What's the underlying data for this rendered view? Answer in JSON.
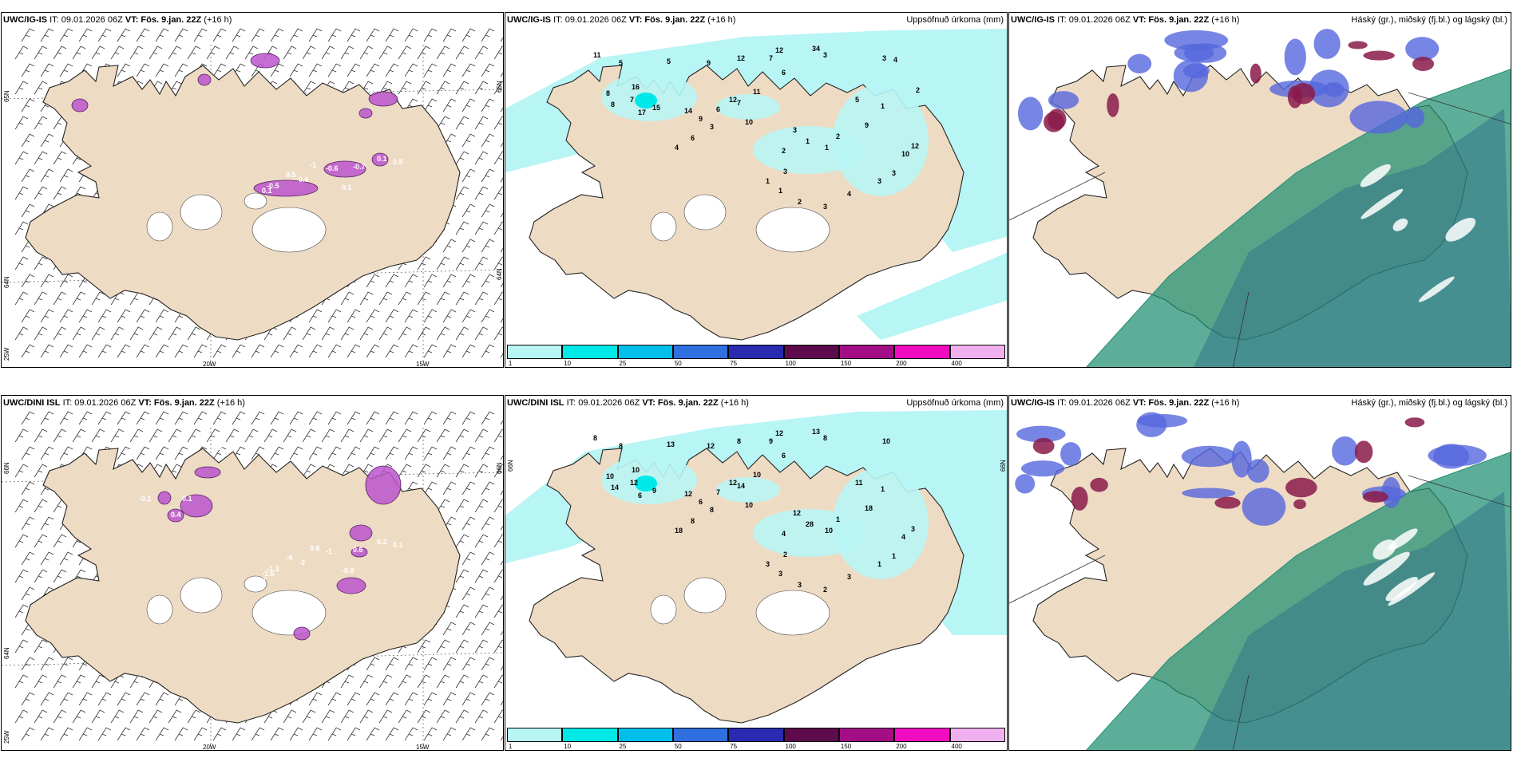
{
  "colors": {
    "land": "#eedbc4",
    "coast": "#222222",
    "snow": "#ffffff",
    "precip_light": "#b8f5f5",
    "precip_mid": "#00e8e8",
    "cloud_high": "#e8475f",
    "cloud_mid": "#5566dd",
    "cloud_low": "#1f8f72",
    "instab": "#bb55cc"
  },
  "top_row": {
    "wind": {
      "model": "UWC/IG-IS",
      "it": "IT: 09.01.2026 06Z",
      "vt": "VT: Fös. 9.jan. 22Z",
      "lead": "(+16 h)",
      "axis": [
        "65N",
        "64N",
        "25W",
        "20W",
        "15W",
        "65N",
        "64N"
      ],
      "values": [
        "0",
        "0.1",
        "-0.5",
        "0.5",
        "0.6",
        "-1",
        "-0.6",
        "0.1",
        "-0.7",
        "0.1",
        "0.5"
      ]
    },
    "precip": {
      "model": "UWC/IG-IS",
      "it": "IT: 09.01.2026 06Z",
      "vt": "VT: Fös. 9.jan. 22Z",
      "lead": "(+16 h)",
      "product": "Uppsöfnuð úrkoma (mm)",
      "values": [
        "12",
        "34",
        "11",
        "5",
        "5",
        "9",
        "12",
        "7",
        "6",
        "3",
        "3",
        "16",
        "8",
        "8",
        "7",
        "17",
        "15",
        "14",
        "12",
        "6",
        "9",
        "7",
        "11",
        "10",
        "3",
        "6",
        "4",
        "3",
        "1",
        "1",
        "2",
        "5",
        "9",
        "2",
        "3",
        "1",
        "1",
        "2",
        "3",
        "4",
        "3",
        "3",
        "10",
        "12",
        "1",
        "2",
        "4"
      ]
    },
    "cloud": {
      "model": "UWC/IG-IS",
      "it": "IT: 09.01.2026 06Z",
      "vt": "VT: Fös. 9.jan. 22Z",
      "lead": "(+16 h)",
      "product": "Háský (gr.), miðský (fj.bl.) og lágský (bl.)"
    }
  },
  "bottom_row": {
    "wind": {
      "model": "UWC/DINI ISL",
      "it": "IT: 09.01.2026 06Z",
      "vt": "VT: Fös. 9.jan. 22Z",
      "lead": "(+16 h)",
      "axis": [
        "66N",
        "64N",
        "25W",
        "20W",
        "15W",
        "66N"
      ],
      "values": [
        "-1.7",
        "-1.6",
        "-1.3",
        "-4",
        "-3",
        "0.6",
        "-1",
        "-0.8",
        "0.6",
        "0.2",
        "0.1",
        "-0.1",
        "0.4",
        "0.1",
        "0.2"
      ]
    },
    "precip": {
      "model": "UWC/DINI ISL",
      "it": "IT: 09.01.2026 06Z",
      "vt": "VT: Fös. 9.jan. 22Z",
      "lead": "(+16 h)",
      "product": "Uppsöfnuð úrkoma (mm)",
      "axis": [
        "66N",
        "66N"
      ],
      "values": [
        "12",
        "13",
        "8",
        "8",
        "13",
        "12",
        "8",
        "9",
        "6",
        "8",
        "10",
        "10",
        "10",
        "14",
        "12",
        "6",
        "9",
        "12",
        "12",
        "7",
        "6",
        "14",
        "10",
        "10",
        "8",
        "8",
        "18",
        "12",
        "28",
        "10",
        "1",
        "11",
        "18",
        "4",
        "2",
        "3",
        "3",
        "3",
        "2",
        "3",
        "1",
        "1",
        "4",
        "3",
        "1"
      ]
    },
    "cloud": {
      "model": "UWC/IG-IS",
      "it": "IT: 09.01.2026 06Z",
      "vt": "VT: Fös. 9.jan. 22Z",
      "lead": "(+16 h)",
      "product": "Háský (gr.), miðský (fj.bl.) og lágský (bl.)"
    }
  },
  "colorbar": {
    "ticks": [
      "1",
      "10",
      "25",
      "50",
      "75",
      "100",
      "150",
      "200",
      "400"
    ],
    "colors": [
      "#b8f5f5",
      "#00e8e8",
      "#00bfea",
      "#2f6fe0",
      "#2a2ab0",
      "#5e0b4e",
      "#a30d86",
      "#f20cc0",
      "#f0b0f0"
    ]
  }
}
